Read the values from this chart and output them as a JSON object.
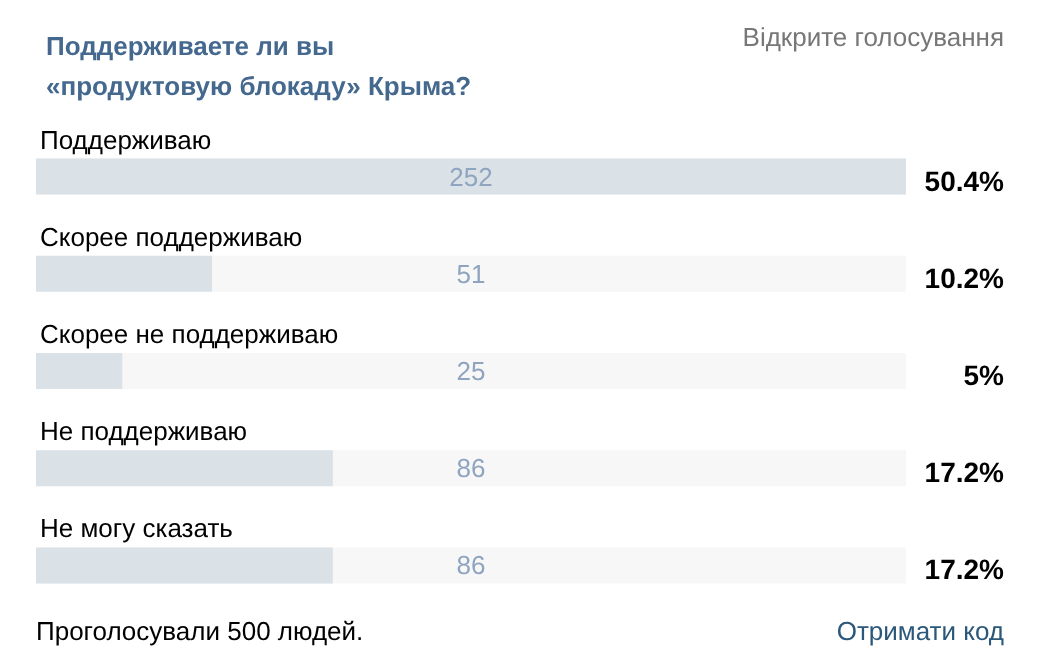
{
  "chart_data": {
    "type": "bar",
    "orientation": "horizontal",
    "title": "Поддерживаете ли вы «продуктовую блокаду» Крыма?",
    "categories": [
      "Поддерживаю",
      "Скорее поддерживаю",
      "Скорее не поддерживаю",
      "Не поддерживаю",
      "Не могу сказать"
    ],
    "values": [
      252,
      51,
      25,
      86,
      86
    ],
    "color": "#dae2e8",
    "data_labels": true,
    "annotations": [
      "Відкрите голосування",
      "Проголосували 500 людей.",
      "Отримати код",
      "50.4%",
      "10.2%",
      "5%",
      "17.2%",
      "17.2%"
    ]
  }
}
